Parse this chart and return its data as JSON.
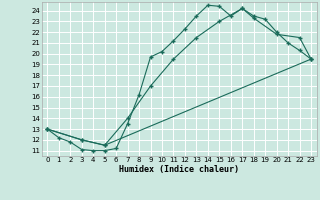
{
  "xlabel": "Humidex (Indice chaleur)",
  "bg_color": "#cce8e0",
  "grid_color": "#ffffff",
  "line_color": "#1a6b5a",
  "xlim": [
    -0.5,
    23.5
  ],
  "ylim": [
    10.5,
    24.8
  ],
  "yticks": [
    11,
    12,
    13,
    14,
    15,
    16,
    17,
    18,
    19,
    20,
    21,
    22,
    23,
    24
  ],
  "xticks": [
    0,
    1,
    2,
    3,
    4,
    5,
    6,
    7,
    8,
    9,
    10,
    11,
    12,
    13,
    14,
    15,
    16,
    17,
    18,
    19,
    20,
    21,
    22,
    23
  ],
  "line1_x": [
    0,
    1,
    2,
    3,
    4,
    5,
    6,
    7,
    8,
    9,
    10,
    11,
    12,
    13,
    14,
    15,
    16,
    17,
    18,
    19,
    20,
    21,
    22,
    23
  ],
  "line1_y": [
    13.0,
    12.2,
    11.8,
    11.1,
    11.0,
    11.0,
    11.2,
    13.5,
    16.2,
    19.7,
    20.2,
    21.2,
    22.3,
    23.5,
    24.5,
    24.4,
    23.5,
    24.2,
    23.5,
    23.2,
    22.0,
    21.0,
    20.3,
    19.5
  ],
  "line2_x": [
    0,
    3,
    5,
    23
  ],
  "line2_y": [
    13.0,
    12.0,
    11.5,
    19.5
  ],
  "line3_x": [
    0,
    3,
    5,
    7,
    9,
    11,
    13,
    15,
    17,
    18,
    20,
    22,
    23
  ],
  "line3_y": [
    13.0,
    12.0,
    11.5,
    14.0,
    17.0,
    19.5,
    21.5,
    23.0,
    24.2,
    23.3,
    21.8,
    21.5,
    19.5
  ]
}
